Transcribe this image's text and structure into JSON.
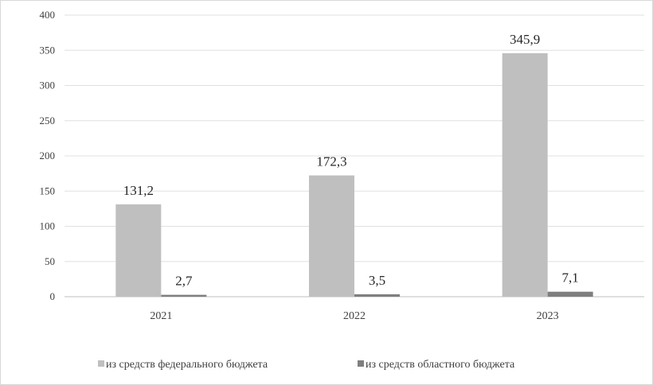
{
  "chart_data": {
    "type": "bar",
    "title": "",
    "xlabel": "",
    "ylabel": "",
    "ylim": [
      0,
      400
    ],
    "yticks": [
      0,
      50,
      100,
      150,
      200,
      250,
      300,
      350,
      400
    ],
    "grid": true,
    "legend_position": "bottom",
    "categories": [
      "2021",
      "2022",
      "2023"
    ],
    "series": [
      {
        "name": "из средств федерального бюджета",
        "values": [
          131.2,
          172.3,
          345.9
        ],
        "labels": [
          "131,2",
          "172,3",
          "345,9"
        ],
        "color": "#bfbfbf"
      },
      {
        "name": "из средств областного бюджета",
        "values": [
          2.7,
          3.5,
          7.1
        ],
        "labels": [
          "2,7",
          "3,5",
          "7,1"
        ],
        "color": "#7f7f7f"
      }
    ]
  }
}
